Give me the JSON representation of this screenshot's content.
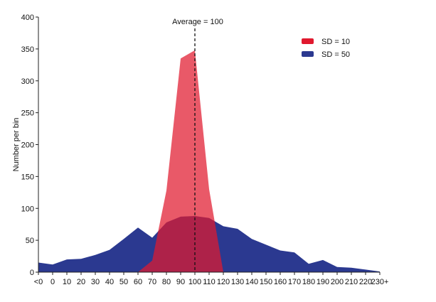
{
  "chart_data": {
    "type": "area",
    "title": "",
    "xlabel": "",
    "ylabel": "Number per bin",
    "ylim": [
      0,
      400
    ],
    "yticks": [
      0,
      50,
      100,
      150,
      200,
      250,
      300,
      350,
      400
    ],
    "categories": [
      "<0",
      "0",
      "10",
      "20",
      "30",
      "40",
      "50",
      "60",
      "70",
      "80",
      "90",
      "100",
      "110",
      "120",
      "130",
      "140",
      "150",
      "160",
      "170",
      "180",
      "190",
      "200",
      "210",
      "220",
      "230+"
    ],
    "series": [
      {
        "name": "SD = 50",
        "color": "#2b3990",
        "points": [
          {
            "x": "<0",
            "y": 15
          },
          {
            "x": "0",
            "y": 12
          },
          {
            "x": "10",
            "y": 20
          },
          {
            "x": "20",
            "y": 21
          },
          {
            "x": "30",
            "y": 27
          },
          {
            "x": "40",
            "y": 35
          },
          {
            "x": "50",
            "y": 52
          },
          {
            "x": "60",
            "y": 70
          },
          {
            "x": "70",
            "y": 54
          },
          {
            "x": "80",
            "y": 78
          },
          {
            "x": "90",
            "y": 87
          },
          {
            "x": "100",
            "y": 88
          },
          {
            "x": "110",
            "y": 85
          },
          {
            "x": "120",
            "y": 72
          },
          {
            "x": "130",
            "y": 68
          },
          {
            "x": "140",
            "y": 52
          },
          {
            "x": "150",
            "y": 43
          },
          {
            "x": "160",
            "y": 34
          },
          {
            "x": "170",
            "y": 31
          },
          {
            "x": "180",
            "y": 13
          },
          {
            "x": "190",
            "y": 19
          },
          {
            "x": "200",
            "y": 8
          },
          {
            "x": "210",
            "y": 7
          },
          {
            "x": "220",
            "y": 4
          },
          {
            "x": "230+",
            "y": 1
          }
        ]
      },
      {
        "name": "SD = 10",
        "color": "#e0192e",
        "points": [
          {
            "x": "60",
            "y": 0
          },
          {
            "x": "70",
            "y": 18
          },
          {
            "x": "80",
            "y": 128
          },
          {
            "x": "90",
            "y": 335
          },
          {
            "x": "100",
            "y": 348
          },
          {
            "x": "110",
            "y": 130
          },
          {
            "x": "120",
            "y": 0
          }
        ]
      }
    ],
    "annotations": [
      {
        "text": "Average = 100",
        "x": "100",
        "style": "dashed vertical line"
      }
    ],
    "legend": {
      "placement": "top-right",
      "items": [
        {
          "label": "SD = 10",
          "color": "#e0192e"
        },
        {
          "label": "SD = 50",
          "color": "#2b3990"
        }
      ]
    },
    "grid": false
  }
}
